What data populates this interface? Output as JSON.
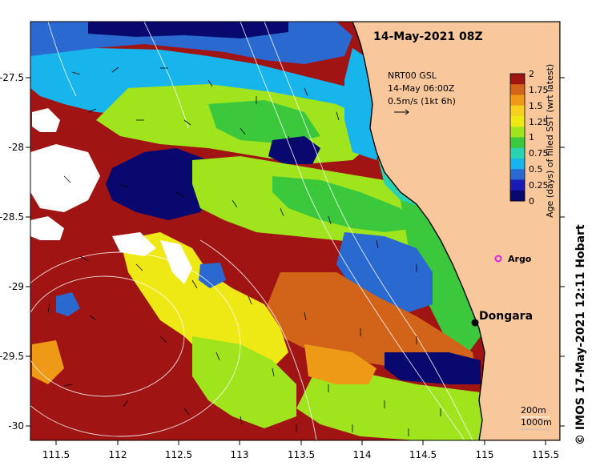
{
  "map": {
    "title": "14-May-2021 08Z",
    "info_lines": [
      "NRT00 GSL",
      "14-May 06:00Z",
      "0.5m/s (1kt 6h)"
    ],
    "x_ticks": [
      "111.5",
      "112",
      "112.5",
      "113",
      "113.5",
      "114",
      "114.5",
      "115",
      "115.5"
    ],
    "y_ticks": [
      "-27.5",
      "-28",
      "-28.5",
      "-29",
      "-29.5",
      "-30"
    ],
    "colorbar": {
      "label": "Age (days) of filled SST (wrt latest)",
      "ticks": [
        "2",
        "1.75",
        "1.5",
        "1.25",
        "1",
        "0.75",
        "0.5",
        "0.25",
        "0"
      ],
      "colors": [
        "#08086e",
        "#1a1ab4",
        "#2a6ad0",
        "#18b4ec",
        "#2ad2b0",
        "#3cc83c",
        "#a0e41e",
        "#eee814",
        "#f7d020",
        "#ee9a16",
        "#d2641a",
        "#a01414"
      ]
    },
    "places": [
      {
        "name": "Dongara"
      },
      {
        "name": "Argo"
      }
    ],
    "depth_labels": [
      "200m",
      "1000m"
    ],
    "credit": "© IMOS 17-May-2021 12:11 Hobart",
    "colors": {
      "land": "#f8c89c",
      "coast": "#000000",
      "argo": "#e020e0"
    }
  }
}
